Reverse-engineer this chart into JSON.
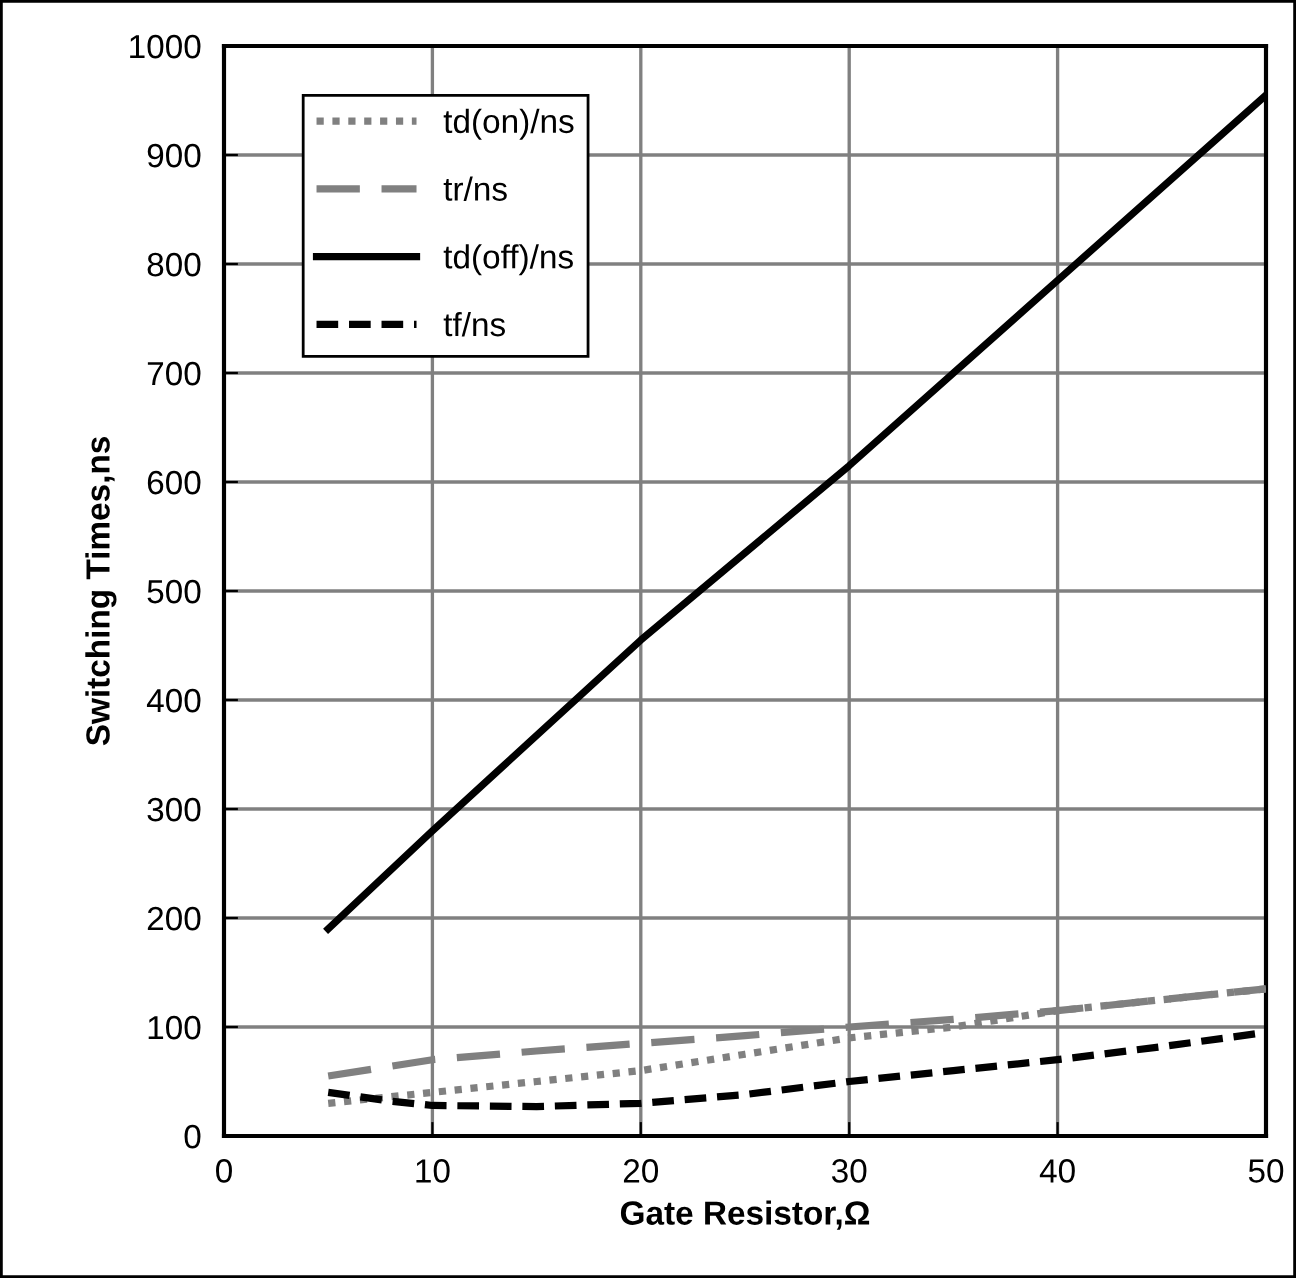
{
  "chart_data": {
    "type": "line",
    "xlabel": "Gate Resistor,Ω",
    "ylabel": "Switching Times,ns",
    "xlim": [
      0,
      50
    ],
    "xticks": [
      0,
      10,
      20,
      30,
      40,
      50
    ],
    "ylim": [
      0,
      1000
    ],
    "yticks": [
      0,
      100,
      200,
      300,
      400,
      500,
      600,
      700,
      800,
      900,
      1000
    ],
    "grid": true,
    "legend": "top left",
    "series": [
      {
        "name": "td(on)/ns",
        "color": "#808080",
        "line_style": "dotted",
        "x": [
          5,
          10,
          15,
          20,
          25,
          30,
          35,
          40,
          45,
          50
        ],
        "values": [
          30,
          40,
          50,
          60,
          75,
          90,
          100,
          115,
          125,
          135
        ]
      },
      {
        "name": "tr/ns",
        "color": "#808080",
        "line_style": "dashed",
        "x": [
          5,
          10,
          15,
          20,
          25,
          30,
          35,
          40,
          45,
          50
        ],
        "values": [
          55,
          70,
          78,
          85,
          92,
          100,
          107,
          115,
          125,
          135
        ]
      },
      {
        "name": "td(off)/ns",
        "color": "#000000",
        "line_style": "solid",
        "x": [
          5,
          10,
          20,
          30,
          40,
          50
        ],
        "values": [
          190,
          280,
          455,
          615,
          785,
          955
        ]
      },
      {
        "name": "tf/ns",
        "color": "#000000",
        "line_style": "dashed",
        "x": [
          5,
          8,
          10,
          15,
          20,
          25,
          30,
          35,
          40,
          45,
          50
        ],
        "values": [
          40,
          32,
          28,
          27,
          30,
          38,
          50,
          60,
          70,
          82,
          95
        ]
      }
    ]
  }
}
